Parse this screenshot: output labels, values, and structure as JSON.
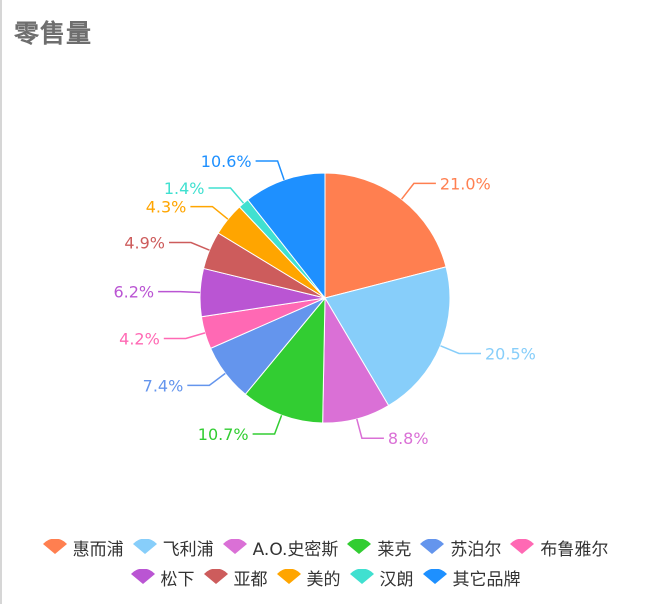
{
  "title": "零售量",
  "chart_data": {
    "type": "pie",
    "title": "零售量",
    "legend_position": "bottom",
    "slices": [
      {
        "name": "惠而浦",
        "value": 21.0,
        "label": "21.0%",
        "color": "#ff7f50"
      },
      {
        "name": "飞利浦",
        "value": 20.5,
        "label": "20.5%",
        "color": "#87cefa"
      },
      {
        "name": "A.O.史密斯",
        "value": 8.8,
        "label": "8.8%",
        "color": "#da70d6"
      },
      {
        "name": "莱克",
        "value": 10.7,
        "label": "10.7%",
        "color": "#32cd32"
      },
      {
        "name": "苏泊尔",
        "value": 7.4,
        "label": "7.4%",
        "color": "#6495ed"
      },
      {
        "name": "布鲁雅尔",
        "value": 4.2,
        "label": "4.2%",
        "color": "#ff69b4"
      },
      {
        "name": "松下",
        "value": 6.2,
        "label": "6.2%",
        "color": "#ba55d3"
      },
      {
        "name": "亚都",
        "value": 4.9,
        "label": "4.9%",
        "color": "#cd5c5c"
      },
      {
        "name": "美的",
        "value": 4.3,
        "label": "4.3%",
        "color": "#ffa500"
      },
      {
        "name": "汉朗",
        "value": 1.4,
        "label": "1.4%",
        "color": "#40e0d0"
      },
      {
        "name": "其它品牌",
        "value": 10.6,
        "label": "10.6%",
        "color": "#1e90ff"
      }
    ]
  }
}
